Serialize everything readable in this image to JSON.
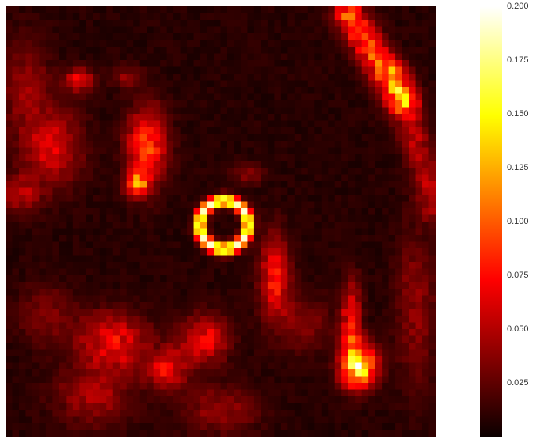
{
  "chart_data": {
    "type": "heatmap",
    "title": "",
    "xlabel": "",
    "ylabel": "",
    "colormap": "hot",
    "vmin": 0.0,
    "vmax": 0.2,
    "grid": false,
    "legend": "colorbar-right",
    "colorbar": {
      "ticks": [
        {
          "value": 0.025,
          "label": "0.025"
        },
        {
          "value": 0.05,
          "label": "0.050"
        },
        {
          "value": 0.075,
          "label": "0.075"
        },
        {
          "value": 0.1,
          "label": "0.100"
        },
        {
          "value": 0.125,
          "label": "0.125"
        },
        {
          "value": 0.15,
          "label": "0.150"
        },
        {
          "value": 0.175,
          "label": "0.175"
        },
        {
          "value": 0.2,
          "label": "0.200"
        }
      ]
    },
    "grid_size": [
      64,
      64
    ],
    "features": [
      {
        "kind": "ring",
        "cx": 32.5,
        "cy": 32.5,
        "r": 3.6,
        "w": 0.6,
        "peak": 0.18
      },
      {
        "kind": "band",
        "x0": 51,
        "y0": 1,
        "x1": 59,
        "y1": 14,
        "w": 1.6,
        "peak": 0.085
      },
      {
        "kind": "band",
        "x0": 58,
        "y0": 10,
        "x1": 64,
        "y1": 30,
        "w": 1.5,
        "peak": 0.04
      },
      {
        "kind": "blob",
        "cx": 21,
        "cy": 21,
        "sx": 2.0,
        "sy": 4.0,
        "peak": 0.08
      },
      {
        "kind": "blob",
        "cx": 19.5,
        "cy": 26.5,
        "sx": 1.2,
        "sy": 1.2,
        "peak": 0.09
      },
      {
        "kind": "blob",
        "cx": 11,
        "cy": 11,
        "sx": 1.5,
        "sy": 1.2,
        "peak": 0.06
      },
      {
        "kind": "blob",
        "cx": 18,
        "cy": 10.5,
        "sx": 1.5,
        "sy": 1.0,
        "peak": 0.03
      },
      {
        "kind": "blob",
        "cx": 7,
        "cy": 21,
        "sx": 3.0,
        "sy": 4.0,
        "peak": 0.05
      },
      {
        "kind": "blob",
        "cx": 3,
        "cy": 12,
        "sx": 2.5,
        "sy": 5.0,
        "peak": 0.03
      },
      {
        "kind": "blob",
        "cx": 2,
        "cy": 28,
        "sx": 2.0,
        "sy": 2.0,
        "peak": 0.04
      },
      {
        "kind": "blob",
        "cx": 36,
        "cy": 25,
        "sx": 1.5,
        "sy": 1.0,
        "peak": 0.03
      },
      {
        "kind": "blob",
        "cx": 40,
        "cy": 40,
        "sx": 1.5,
        "sy": 4.0,
        "peak": 0.07
      },
      {
        "kind": "blob",
        "cx": 51.5,
        "cy": 47,
        "sx": 1.0,
        "sy": 4.0,
        "peak": 0.07
      },
      {
        "kind": "blob",
        "cx": 52.5,
        "cy": 53.5,
        "sx": 1.8,
        "sy": 2.2,
        "peak": 0.15
      },
      {
        "kind": "blob",
        "cx": 16,
        "cy": 50,
        "sx": 3.5,
        "sy": 3.0,
        "peak": 0.06
      },
      {
        "kind": "blob",
        "cx": 24,
        "cy": 54,
        "sx": 2.0,
        "sy": 2.0,
        "peak": 0.06
      },
      {
        "kind": "blob",
        "cx": 29.5,
        "cy": 49.5,
        "sx": 2.5,
        "sy": 2.5,
        "peak": 0.06
      },
      {
        "kind": "blob",
        "cx": 13,
        "cy": 58,
        "sx": 4.0,
        "sy": 3.0,
        "peak": 0.035
      },
      {
        "kind": "blob",
        "cx": 32,
        "cy": 60,
        "sx": 4.0,
        "sy": 2.5,
        "peak": 0.03
      },
      {
        "kind": "blob",
        "cx": 6,
        "cy": 46,
        "sx": 3.0,
        "sy": 3.0,
        "peak": 0.025
      },
      {
        "kind": "blob",
        "cx": 61,
        "cy": 45,
        "sx": 2.0,
        "sy": 8.0,
        "peak": 0.03
      },
      {
        "kind": "blob",
        "cx": 44,
        "cy": 47,
        "sx": 3.0,
        "sy": 3.0,
        "peak": 0.025
      }
    ]
  }
}
